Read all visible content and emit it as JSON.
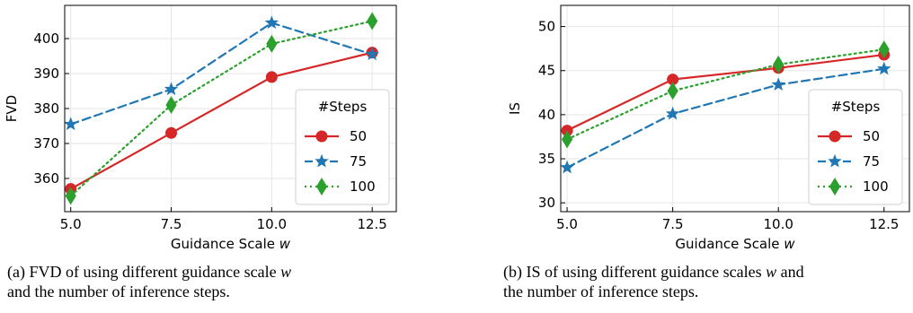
{
  "colors": {
    "s50": "#d62728",
    "s75": "#1f77b4",
    "s100": "#2ca02c",
    "grid": "#e6e6e6"
  },
  "chart_data": [
    {
      "type": "line",
      "xlabel": "Guidance Scale w",
      "ylabel": "FVD",
      "x": [
        5.0,
        7.5,
        10.0,
        12.5
      ],
      "x_tick_labels": [
        "5.0",
        "7.5",
        "10.0",
        "12.5"
      ],
      "xlim": [
        4.85,
        13.1
      ],
      "ylim": [
        350.5,
        409.5
      ],
      "y_ticks": [
        360,
        370,
        380,
        390,
        400
      ],
      "y_tick_labels": [
        "360",
        "370",
        "380",
        "390",
        "400"
      ],
      "grid": true,
      "legend": {
        "title": "#Steps",
        "placement": "lower-right"
      },
      "series": [
        {
          "name": "50",
          "values": [
            357.0,
            373.0,
            389.0,
            396.0
          ],
          "color": "#d62728",
          "linestyle": "solid",
          "marker": "circle"
        },
        {
          "name": "75",
          "values": [
            375.5,
            385.5,
            404.5,
            395.5
          ],
          "color": "#1f77b4",
          "linestyle": "dashed",
          "marker": "star"
        },
        {
          "name": "100",
          "values": [
            355.0,
            381.0,
            398.5,
            405.0
          ],
          "color": "#2ca02c",
          "linestyle": "dotted",
          "marker": "diamond"
        }
      ]
    },
    {
      "type": "line",
      "xlabel": "Guidance Scale w",
      "ylabel": "IS",
      "x": [
        5.0,
        7.5,
        10.0,
        12.5
      ],
      "x_tick_labels": [
        "5.0",
        "7.5",
        "10.0",
        "12.5"
      ],
      "xlim": [
        4.85,
        13.1
      ],
      "ylim": [
        29.0,
        52.4
      ],
      "y_ticks": [
        30,
        35,
        40,
        45,
        50
      ],
      "y_tick_labels": [
        "30",
        "35",
        "40",
        "45",
        "50"
      ],
      "grid": true,
      "legend": {
        "title": "#Steps",
        "placement": "lower-right"
      },
      "series": [
        {
          "name": "50",
          "values": [
            38.2,
            44.0,
            45.3,
            46.8
          ],
          "color": "#d62728",
          "linestyle": "solid",
          "marker": "circle"
        },
        {
          "name": "75",
          "values": [
            34.0,
            40.1,
            43.4,
            45.2
          ],
          "color": "#1f77b4",
          "linestyle": "dashed",
          "marker": "star"
        },
        {
          "name": "100",
          "values": [
            37.2,
            42.7,
            45.7,
            47.4
          ],
          "color": "#2ca02c",
          "linestyle": "dotted",
          "marker": "diamond"
        }
      ]
    }
  ],
  "captions": [
    {
      "label": "(a)",
      "line1": "FVD of using different guidance scale",
      "var": "w",
      "line2": "and the number of inference steps."
    },
    {
      "label": "(b)",
      "line1": "IS of using different guidance scales",
      "var": "w",
      "tail": "and",
      "line2": "the number of inference steps."
    }
  ]
}
